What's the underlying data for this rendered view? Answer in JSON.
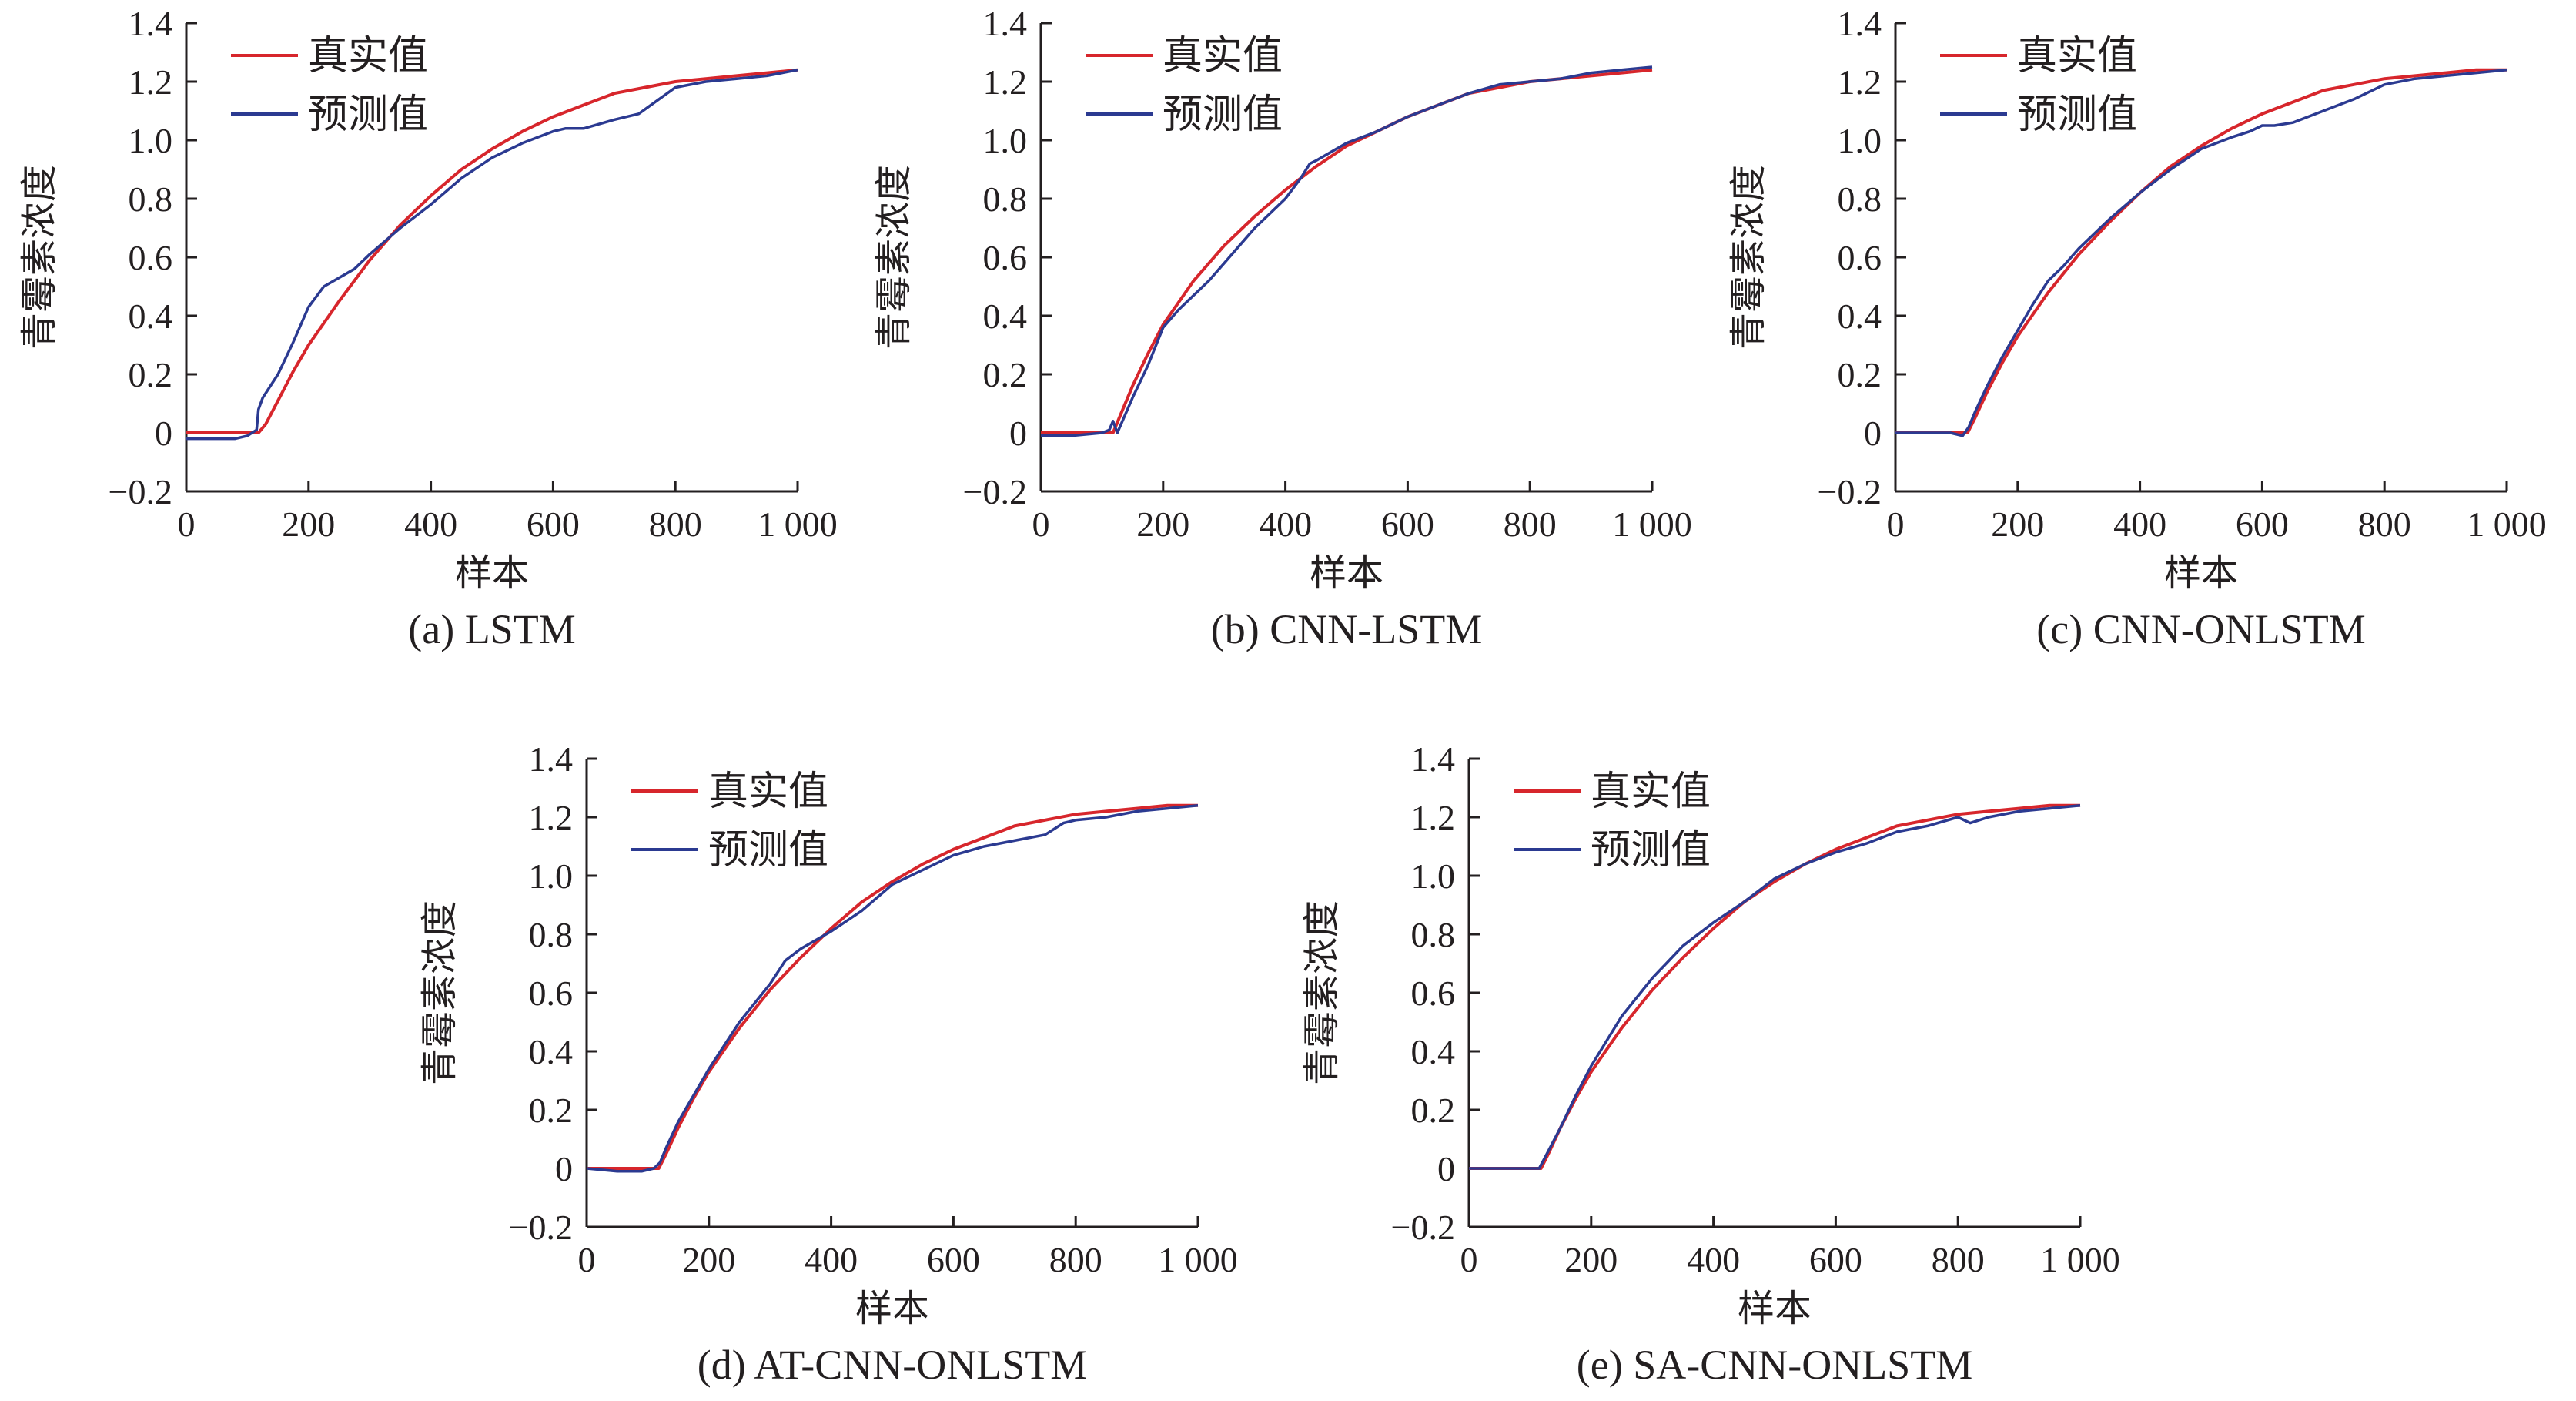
{
  "figure": {
    "colors": {
      "true_series": "#d7262c",
      "pred_series": "#2b3a91",
      "axis": "#231f20"
    }
  },
  "chart_data": [
    {
      "id": "a",
      "type": "line",
      "caption": "(a) LSTM",
      "xlabel": "样本",
      "ylabel": "青霉素浓度",
      "xlim": [
        0,
        1000
      ],
      "ylim": [
        -0.2,
        1.4
      ],
      "xticks": [
        0,
        200,
        400,
        600,
        800,
        1000
      ],
      "xtick_labels": [
        "0",
        "200",
        "400",
        "600",
        "800",
        "1 000"
      ],
      "yticks": [
        -0.2,
        0,
        0.2,
        0.4,
        0.6,
        0.8,
        1.0,
        1.2,
        1.4
      ],
      "ytick_labels": [
        "−0.2",
        "0",
        "0.2",
        "0.4",
        "0.6",
        "0.8",
        "1.0",
        "1.2",
        "1.4"
      ],
      "legend": "top-left",
      "series": [
        {
          "name": "真实值",
          "color": "#d7262c",
          "x": [
            0,
            50,
            100,
            118,
            130,
            150,
            175,
            200,
            250,
            300,
            350,
            400,
            450,
            500,
            550,
            600,
            650,
            700,
            750,
            800,
            850,
            900,
            950,
            1000
          ],
          "y": [
            0,
            0,
            0,
            0.0,
            0.03,
            0.11,
            0.21,
            0.3,
            0.45,
            0.59,
            0.71,
            0.81,
            0.9,
            0.97,
            1.03,
            1.08,
            1.12,
            1.16,
            1.18,
            1.2,
            1.21,
            1.22,
            1.23,
            1.24
          ]
        },
        {
          "name": "预测值",
          "color": "#2b3a91",
          "x": [
            0,
            40,
            80,
            100,
            115,
            118,
            125,
            150,
            175,
            200,
            225,
            250,
            275,
            300,
            350,
            400,
            450,
            500,
            550,
            600,
            620,
            650,
            700,
            740,
            760,
            780,
            800,
            850,
            900,
            950,
            1000
          ],
          "y": [
            -0.02,
            -0.02,
            -0.02,
            -0.01,
            0.01,
            0.08,
            0.12,
            0.2,
            0.31,
            0.43,
            0.5,
            0.53,
            0.56,
            0.61,
            0.7,
            0.78,
            0.87,
            0.94,
            0.99,
            1.03,
            1.04,
            1.04,
            1.07,
            1.09,
            1.12,
            1.15,
            1.18,
            1.2,
            1.21,
            1.22,
            1.24
          ]
        }
      ]
    },
    {
      "id": "b",
      "type": "line",
      "caption": "(b) CNN-LSTM",
      "xlabel": "样本",
      "ylabel": "青霉素浓度",
      "xlim": [
        0,
        1000
      ],
      "ylim": [
        -0.2,
        1.4
      ],
      "xticks": [
        0,
        200,
        400,
        600,
        800,
        1000
      ],
      "xtick_labels": [
        "0",
        "200",
        "400",
        "600",
        "800",
        "1 000"
      ],
      "yticks": [
        -0.2,
        0,
        0.2,
        0.4,
        0.6,
        0.8,
        1.0,
        1.2,
        1.4
      ],
      "ytick_labels": [
        "−0.2",
        "0",
        "0.2",
        "0.4",
        "0.6",
        "0.8",
        "1.0",
        "1.2",
        "1.4"
      ],
      "legend": "top-left",
      "series": [
        {
          "name": "真实值",
          "color": "#d7262c",
          "x": [
            0,
            50,
            100,
            118,
            130,
            150,
            175,
            200,
            250,
            300,
            350,
            400,
            450,
            500,
            550,
            600,
            650,
            700,
            750,
            800,
            850,
            900,
            950,
            1000
          ],
          "y": [
            0,
            0,
            0,
            0.0,
            0.06,
            0.16,
            0.27,
            0.37,
            0.52,
            0.64,
            0.74,
            0.83,
            0.91,
            0.98,
            1.03,
            1.08,
            1.12,
            1.16,
            1.18,
            1.2,
            1.21,
            1.22,
            1.23,
            1.24
          ]
        },
        {
          "name": "预测值",
          "color": "#2b3a91",
          "x": [
            0,
            50,
            100,
            112,
            118,
            125,
            150,
            175,
            200,
            225,
            250,
            275,
            300,
            325,
            350,
            375,
            400,
            425,
            440,
            450,
            475,
            500,
            550,
            600,
            650,
            700,
            750,
            800,
            850,
            900,
            950,
            1000
          ],
          "y": [
            -0.01,
            -0.01,
            0.0,
            0.01,
            0.04,
            0.0,
            0.12,
            0.23,
            0.36,
            0.42,
            0.47,
            0.52,
            0.58,
            0.64,
            0.7,
            0.75,
            0.8,
            0.87,
            0.92,
            0.93,
            0.96,
            0.99,
            1.03,
            1.08,
            1.12,
            1.16,
            1.19,
            1.2,
            1.21,
            1.23,
            1.24,
            1.25
          ]
        }
      ]
    },
    {
      "id": "c",
      "type": "line",
      "caption": "(c) CNN-ONLSTM",
      "xlabel": "样本",
      "ylabel": "青霉素浓度",
      "xlim": [
        0,
        1000
      ],
      "ylim": [
        -0.2,
        1.4
      ],
      "xticks": [
        0,
        200,
        400,
        600,
        800,
        1000
      ],
      "xtick_labels": [
        "0",
        "200",
        "400",
        "600",
        "800",
        "1 000"
      ],
      "yticks": [
        -0.2,
        0,
        0.2,
        0.4,
        0.6,
        0.8,
        1.0,
        1.2,
        1.4
      ],
      "ytick_labels": [
        "−0.2",
        "0",
        "0.2",
        "0.4",
        "0.6",
        "0.8",
        "1.0",
        "1.2",
        "1.4"
      ],
      "legend": "top-left",
      "series": [
        {
          "name": "真实值",
          "color": "#d7262c",
          "x": [
            0,
            50,
            100,
            118,
            130,
            150,
            175,
            200,
            250,
            300,
            350,
            400,
            450,
            500,
            550,
            600,
            650,
            700,
            750,
            800,
            850,
            900,
            950,
            1000
          ],
          "y": [
            0,
            0,
            0,
            0.0,
            0.05,
            0.14,
            0.24,
            0.33,
            0.48,
            0.61,
            0.72,
            0.82,
            0.91,
            0.98,
            1.04,
            1.09,
            1.13,
            1.17,
            1.19,
            1.21,
            1.22,
            1.23,
            1.24,
            1.24
          ]
        },
        {
          "name": "预测值",
          "color": "#2b3a91",
          "x": [
            0,
            50,
            90,
            110,
            120,
            130,
            150,
            175,
            200,
            225,
            250,
            275,
            300,
            350,
            400,
            450,
            500,
            550,
            580,
            600,
            620,
            650,
            700,
            750,
            800,
            850,
            900,
            950,
            1000
          ],
          "y": [
            0,
            0,
            0,
            -0.01,
            0.02,
            0.07,
            0.16,
            0.26,
            0.35,
            0.44,
            0.52,
            0.57,
            0.63,
            0.73,
            0.82,
            0.9,
            0.97,
            1.01,
            1.03,
            1.05,
            1.05,
            1.06,
            1.1,
            1.14,
            1.19,
            1.21,
            1.22,
            1.23,
            1.24
          ]
        }
      ]
    },
    {
      "id": "d",
      "type": "line",
      "caption": "(d) AT-CNN-ONLSTM",
      "xlabel": "样本",
      "ylabel": "青霉素浓度",
      "xlim": [
        0,
        1000
      ],
      "ylim": [
        -0.2,
        1.4
      ],
      "xticks": [
        0,
        200,
        400,
        600,
        800,
        1000
      ],
      "xtick_labels": [
        "0",
        "200",
        "400",
        "600",
        "800",
        "1 000"
      ],
      "yticks": [
        -0.2,
        0,
        0.2,
        0.4,
        0.6,
        0.8,
        1.0,
        1.2,
        1.4
      ],
      "ytick_labels": [
        "−0.2",
        "0",
        "0.2",
        "0.4",
        "0.6",
        "0.8",
        "1.0",
        "1.2",
        "1.4"
      ],
      "legend": "top-left",
      "series": [
        {
          "name": "真实值",
          "color": "#d7262c",
          "x": [
            0,
            50,
            100,
            118,
            130,
            150,
            175,
            200,
            250,
            300,
            350,
            400,
            450,
            500,
            550,
            600,
            650,
            700,
            750,
            800,
            850,
            900,
            950,
            1000
          ],
          "y": [
            0,
            0,
            0,
            0.0,
            0.05,
            0.14,
            0.24,
            0.33,
            0.48,
            0.61,
            0.72,
            0.82,
            0.91,
            0.98,
            1.04,
            1.09,
            1.13,
            1.17,
            1.19,
            1.21,
            1.22,
            1.23,
            1.24,
            1.24
          ]
        },
        {
          "name": "预测值",
          "color": "#2b3a91",
          "x": [
            0,
            50,
            90,
            110,
            120,
            130,
            150,
            175,
            200,
            250,
            300,
            325,
            350,
            400,
            450,
            500,
            550,
            600,
            650,
            700,
            750,
            780,
            800,
            850,
            900,
            950,
            1000
          ],
          "y": [
            0,
            -0.01,
            -0.01,
            0.0,
            0.02,
            0.07,
            0.16,
            0.25,
            0.34,
            0.5,
            0.63,
            0.71,
            0.75,
            0.81,
            0.88,
            0.97,
            1.02,
            1.07,
            1.1,
            1.12,
            1.14,
            1.18,
            1.19,
            1.2,
            1.22,
            1.23,
            1.24
          ]
        }
      ]
    },
    {
      "id": "e",
      "type": "line",
      "caption": "(e) SA-CNN-ONLSTM",
      "xlabel": "样本",
      "ylabel": "青霉素浓度",
      "xlim": [
        0,
        1000
      ],
      "ylim": [
        -0.2,
        1.4
      ],
      "xticks": [
        0,
        200,
        400,
        600,
        800,
        1000
      ],
      "xtick_labels": [
        "0",
        "200",
        "400",
        "600",
        "800",
        "1 000"
      ],
      "yticks": [
        -0.2,
        0,
        0.2,
        0.4,
        0.6,
        0.8,
        1.0,
        1.2,
        1.4
      ],
      "ytick_labels": [
        "−0.2",
        "0",
        "0.2",
        "0.4",
        "0.6",
        "0.8",
        "1.0",
        "1.2",
        "1.4"
      ],
      "legend": "top-left",
      "series": [
        {
          "name": "真实值",
          "color": "#d7262c",
          "x": [
            0,
            50,
            100,
            118,
            130,
            150,
            175,
            200,
            250,
            300,
            350,
            400,
            450,
            500,
            550,
            600,
            650,
            700,
            750,
            800,
            850,
            900,
            950,
            1000
          ],
          "y": [
            0,
            0,
            0,
            0.0,
            0.05,
            0.14,
            0.24,
            0.33,
            0.48,
            0.61,
            0.72,
            0.82,
            0.91,
            0.98,
            1.04,
            1.09,
            1.13,
            1.17,
            1.19,
            1.21,
            1.22,
            1.23,
            1.24,
            1.24
          ]
        },
        {
          "name": "预测值",
          "color": "#2b3a91",
          "x": [
            0,
            50,
            100,
            115,
            125,
            150,
            175,
            200,
            250,
            300,
            350,
            400,
            450,
            500,
            550,
            600,
            650,
            700,
            750,
            800,
            820,
            850,
            900,
            950,
            1000
          ],
          "y": [
            0,
            0,
            0,
            0.0,
            0.04,
            0.14,
            0.25,
            0.35,
            0.52,
            0.65,
            0.76,
            0.84,
            0.91,
            0.99,
            1.04,
            1.08,
            1.11,
            1.15,
            1.17,
            1.2,
            1.18,
            1.2,
            1.22,
            1.23,
            1.24
          ]
        }
      ]
    }
  ]
}
